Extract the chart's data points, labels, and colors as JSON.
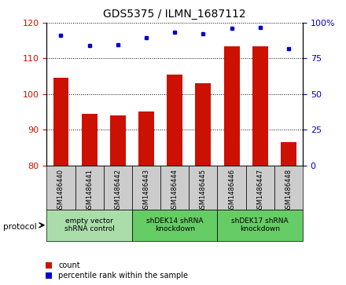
{
  "title": "GDS5375 / ILMN_1687112",
  "samples": [
    "GSM1486440",
    "GSM1486441",
    "GSM1486442",
    "GSM1486443",
    "GSM1486444",
    "GSM1486445",
    "GSM1486446",
    "GSM1486447",
    "GSM1486448"
  ],
  "counts": [
    104.5,
    94.5,
    94.0,
    95.0,
    105.5,
    103.0,
    113.5,
    113.5,
    86.5
  ],
  "percentile_ranks": [
    91.0,
    84.0,
    84.5,
    89.5,
    93.5,
    92.5,
    96.0,
    96.5,
    82.0
  ],
  "ylim_left": [
    80,
    120
  ],
  "yticks_left": [
    80,
    90,
    100,
    110,
    120
  ],
  "ylim_right": [
    0,
    100
  ],
  "yticks_right": [
    0,
    25,
    50,
    75,
    100
  ],
  "bar_color": "#cc1100",
  "marker_color": "#0000cc",
  "bar_bottom": 80,
  "bar_width": 0.55,
  "groups": [
    {
      "label": "empty vector\nshRNA control",
      "start": 0,
      "end": 3,
      "color": "#aaddaa"
    },
    {
      "label": "shDEK14 shRNA\nknockdown",
      "start": 3,
      "end": 6,
      "color": "#66cc66"
    },
    {
      "label": "shDEK17 shRNA\nknockdown",
      "start": 6,
      "end": 9,
      "color": "#66cc66"
    }
  ],
  "protocol_label": "protocol",
  "legend_items": [
    {
      "color": "#cc1100",
      "label": "count"
    },
    {
      "color": "#0000cc",
      "label": "percentile rank within the sample"
    }
  ],
  "title_fontsize": 10,
  "axis_label_color_left": "#cc1100",
  "axis_label_color_right": "#0000cc",
  "grid_color": "#000000",
  "sample_box_color": "#cccccc",
  "plot_bg": "#ffffff"
}
